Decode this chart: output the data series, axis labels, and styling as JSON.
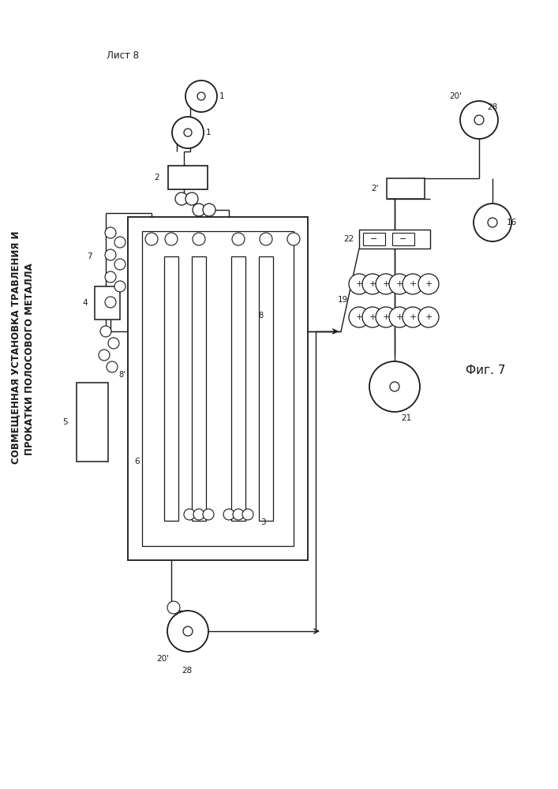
{
  "title_line1": "СОВМЕЩЕННАЯ УСТАНОВКА ТРАВЛЕНИЯ И",
  "title_line2": "ПРОКАТКИ ПОЛОСОВОГО МЕТАЛЛА",
  "sheet_label": "Лист 8",
  "fig_label": "Фиг. 7",
  "bg_color": "#ffffff",
  "line_color": "#1a1a1a"
}
